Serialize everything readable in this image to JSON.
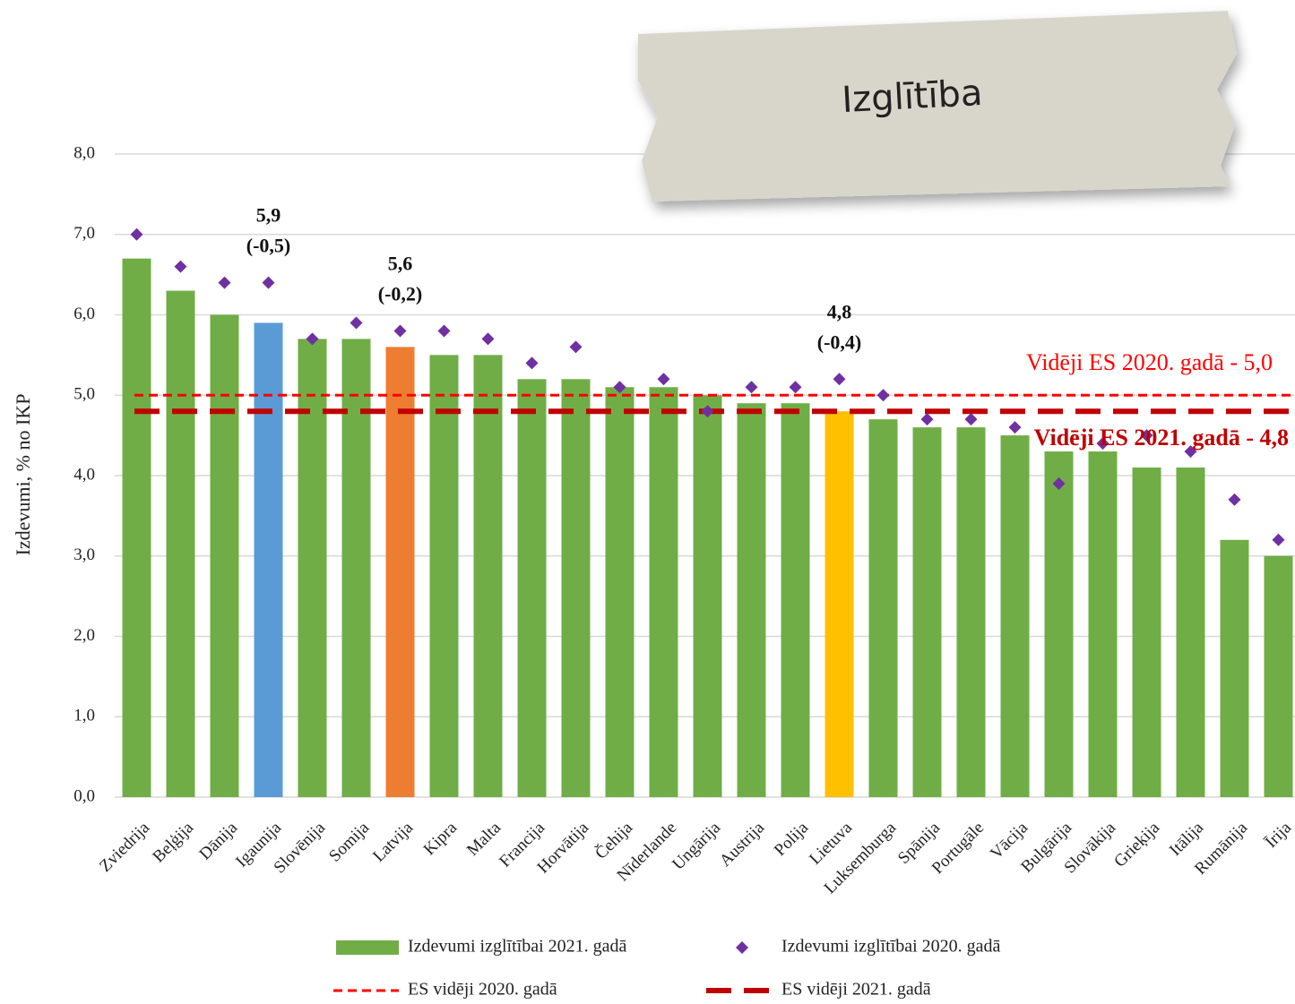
{
  "chart_data": {
    "type": "bar",
    "title": "Izglītība",
    "y_label": "Izdevumi, % no IKP",
    "categories": [
      "Zviedrija",
      "Beļģija",
      "Dānija",
      "Igaunija",
      "Slovēnija",
      "Somija",
      "Latvija",
      "Kipra",
      "Malta",
      "Francija",
      "Horvātija",
      "Čehija",
      "Nīderlande",
      "Ungārija",
      "Austrija",
      "Polija",
      "Lietuva",
      "Luksemburga",
      "Spānija",
      "Portugāle",
      "Vācija",
      "Bulgārija",
      "Slovākija",
      "Grieķija",
      "Itālija",
      "Rumānija",
      "Īrija"
    ],
    "series": [
      {
        "name": "Izdevumi izglītībai 2021. gadā",
        "color": "#70ad47",
        "colors": [
          "#70ad47",
          "#70ad47",
          "#70ad47",
          "#5b9bd5",
          "#70ad47",
          "#70ad47",
          "#ed7d31",
          "#70ad47",
          "#70ad47",
          "#70ad47",
          "#70ad47",
          "#70ad47",
          "#70ad47",
          "#70ad47",
          "#70ad47",
          "#70ad47",
          "#ffc000",
          "#70ad47",
          "#70ad47",
          "#70ad47",
          "#70ad47",
          "#70ad47",
          "#70ad47",
          "#70ad47",
          "#70ad47",
          "#70ad47",
          "#70ad47"
        ],
        "values": [
          6.7,
          6.3,
          6.0,
          5.9,
          5.7,
          5.7,
          5.6,
          5.5,
          5.5,
          5.2,
          5.2,
          5.1,
          5.1,
          5.0,
          4.9,
          4.9,
          4.8,
          4.7,
          4.6,
          4.6,
          4.5,
          4.3,
          4.3,
          4.1,
          4.1,
          3.2,
          3.0
        ],
        "value_labels": [
          null,
          null,
          null,
          "5,9",
          null,
          null,
          "5,6",
          null,
          null,
          null,
          null,
          null,
          null,
          null,
          null,
          null,
          "4,8",
          null,
          null,
          null,
          null,
          null,
          null,
          null,
          null,
          null,
          null
        ],
        "change_labels": [
          null,
          null,
          null,
          "(-0,5)",
          null,
          null,
          "(-0,2)",
          null,
          null,
          null,
          null,
          null,
          null,
          null,
          null,
          null,
          "(-0,4)",
          null,
          null,
          null,
          null,
          null,
          null,
          null,
          null,
          null,
          null
        ]
      },
      {
        "name": "Izdevumi izglītībai 2020. gadā",
        "type": "scatter",
        "color": "#7030a0",
        "values": [
          7.0,
          6.6,
          6.4,
          6.4,
          5.7,
          5.9,
          5.8,
          5.8,
          5.7,
          5.4,
          5.6,
          5.1,
          5.2,
          4.8,
          5.1,
          5.1,
          5.2,
          5.0,
          4.7,
          4.7,
          4.6,
          3.9,
          4.4,
          4.5,
          4.3,
          3.7,
          3.2
        ]
      }
    ],
    "reference_lines": [
      {
        "name": "ES vidēji 2020. gadā",
        "value": 5.0,
        "color": "#ff0000",
        "label": "Vidēji ES 2020. gadā - 5,0"
      },
      {
        "name": "ES vidēji 2021. gadā",
        "value": 4.8,
        "color": "#c00000",
        "label": "Vidēji ES 2021. gadā - 4,8"
      }
    ],
    "ylim": [
      0,
      8
    ],
    "yticks": [
      {
        "value": 0,
        "label": "0,0"
      },
      {
        "value": 1,
        "label": "1,0"
      },
      {
        "value": 2,
        "label": "2,0"
      },
      {
        "value": 3,
        "label": "3,0"
      },
      {
        "value": 4,
        "label": "4,0"
      },
      {
        "value": 5,
        "label": "5,0"
      },
      {
        "value": 6,
        "label": "6,0"
      },
      {
        "value": 7,
        "label": "7,0"
      },
      {
        "value": 8,
        "label": "8,0"
      }
    ],
    "grid": true
  }
}
